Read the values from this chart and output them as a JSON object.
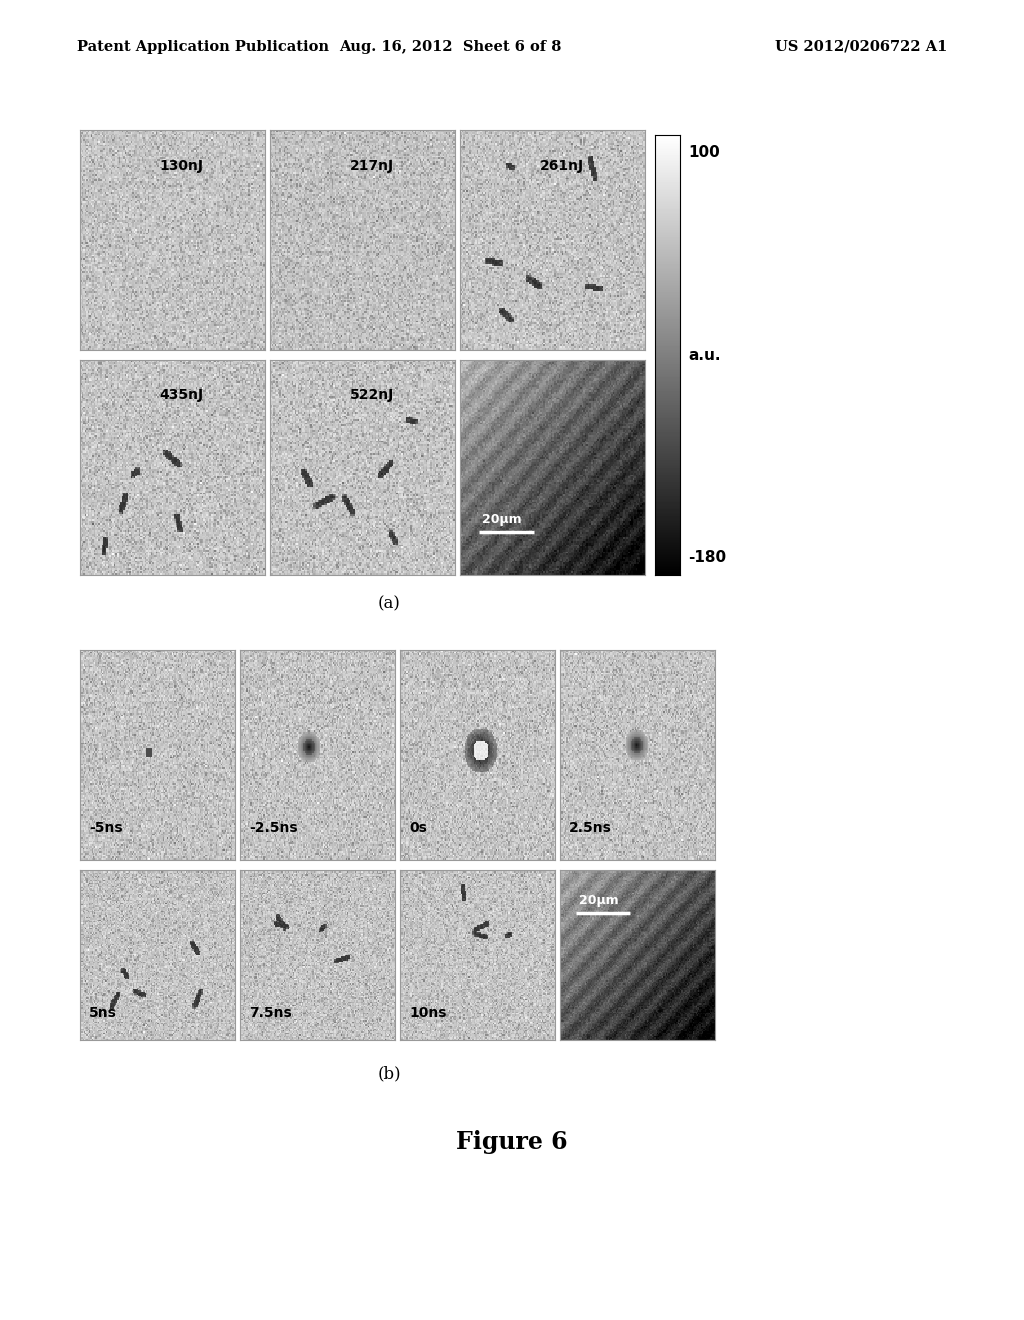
{
  "header_left": "Patent Application Publication",
  "header_center": "Aug. 16, 2012  Sheet 6 of 8",
  "header_right": "US 2012/0206722 A1",
  "figure_label": "Figure 6",
  "panel_a_label": "(a)",
  "panel_b_label": "(b)",
  "colorbar_max": "100",
  "colorbar_unit": "a.u.",
  "colorbar_min": "-180",
  "panel_a_labels": [
    "130nJ",
    "217nJ",
    "261nJ",
    "435nJ",
    "522nJ"
  ],
  "panel_b_labels_r1": [
    "-5ns",
    "-2.5ns",
    "0s",
    "2.5ns"
  ],
  "panel_b_labels_r2": [
    "5ns",
    "7.5ns",
    "10ns"
  ],
  "scalebar_text_a": "20μm",
  "scalebar_text_b": "20μm",
  "bg_color": "#ffffff",
  "header_fontsize": 10.5,
  "label_fontsize": 12,
  "figure_label_fontsize": 17,
  "img_label_fontsize": 10,
  "img_label_color_light": "#000000",
  "img_label_color_dark": "#ffffff",
  "cell_border_color": "#999999",
  "noise_base": 0.78,
  "noise_var": 0.055,
  "img_size": 120
}
